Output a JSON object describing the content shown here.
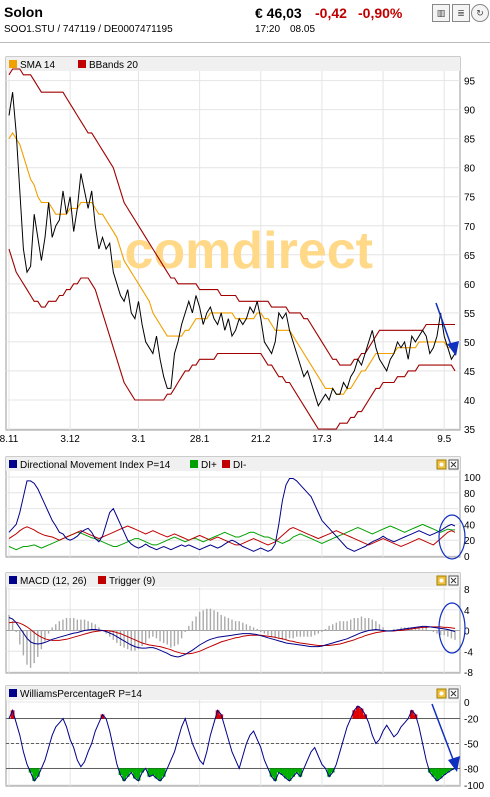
{
  "header": {
    "name": "Solon",
    "ids": "SOO1.STU  /  747119  /  DE0007471195",
    "price": "€ 46,03",
    "change": "-0,42",
    "change_pct": "-0,90%",
    "time": "17:20",
    "date": "08.05"
  },
  "watermark": ".comdirect",
  "chart_data": [
    {
      "type": "line",
      "title": "",
      "legend": [
        "SMA 14",
        "BBands 20"
      ],
      "colors": {
        "price": "#000000",
        "sma": "#f0a000",
        "bb": "#a00000"
      },
      "x_ticks": [
        "8.11",
        "3.12",
        "3.1",
        "28.1",
        "21.2",
        "17.3",
        "14.4",
        "9.5"
      ],
      "x_tick_index": [
        0,
        17,
        36,
        53,
        70,
        87,
        104,
        121
      ],
      "ylim": [
        35,
        97
      ],
      "y_ticks": [
        35,
        40,
        45,
        50,
        55,
        60,
        65,
        70,
        75,
        80,
        85,
        90,
        95
      ],
      "price": [
        89,
        93,
        86,
        76,
        66,
        62,
        63,
        72,
        68,
        64,
        68,
        74,
        68,
        70,
        71,
        76,
        72,
        75,
        69,
        73,
        79,
        76,
        73,
        76,
        70,
        66,
        68,
        66,
        67,
        62,
        60,
        58,
        57,
        59,
        55,
        54,
        57,
        53,
        50,
        49,
        48,
        51,
        47,
        44,
        42,
        42,
        48,
        50,
        53,
        55,
        57,
        55,
        58,
        56,
        53,
        55,
        56,
        54,
        53,
        55,
        52,
        54,
        51,
        52,
        54,
        53,
        54,
        56,
        55,
        57,
        54,
        50,
        49,
        48,
        50,
        55,
        54,
        55,
        52,
        50,
        48,
        46,
        44,
        45,
        43,
        41,
        39,
        40,
        41,
        40,
        42,
        41,
        41,
        43,
        42,
        44,
        45,
        47,
        46,
        48,
        50,
        52,
        49,
        47,
        46,
        45,
        47,
        48,
        50,
        49,
        50,
        47,
        51,
        50,
        51,
        52,
        51,
        48,
        49,
        51,
        55,
        51,
        49,
        47,
        48
      ],
      "sma": [
        85,
        86,
        85,
        84,
        82,
        80,
        78,
        77,
        75,
        74,
        74,
        74,
        73,
        72,
        72,
        72,
        72,
        73,
        73,
        73,
        74,
        74,
        74,
        74,
        73,
        72,
        72,
        71,
        70,
        69,
        68,
        66,
        64,
        63,
        62,
        61,
        60,
        59,
        58,
        57,
        55,
        54,
        53,
        52,
        51,
        51,
        51,
        51,
        51,
        52,
        52,
        53,
        54,
        54,
        54,
        54,
        55,
        55,
        55,
        55,
        55,
        55,
        55,
        54,
        54,
        54,
        54,
        54,
        54,
        55,
        55,
        54,
        54,
        53,
        52,
        52,
        52,
        52,
        52,
        51,
        50,
        49,
        48,
        47,
        46,
        45,
        44,
        43,
        42,
        42,
        42,
        41,
        41,
        41,
        42,
        42,
        43,
        44,
        45,
        45,
        46,
        47,
        48,
        48,
        48,
        48,
        48,
        48,
        49,
        49,
        49,
        49,
        49,
        49,
        50,
        50,
        50,
        50,
        50,
        50,
        50,
        50,
        49,
        49,
        48
      ],
      "bb_upper": [
        96,
        97,
        97,
        97,
        96,
        96,
        96,
        95,
        94,
        93,
        93,
        93,
        93,
        93,
        93,
        93,
        92,
        91,
        90,
        89,
        88,
        87,
        86,
        86,
        85,
        84,
        83,
        82,
        81,
        80,
        78,
        76,
        74,
        73,
        72,
        71,
        70,
        69,
        68,
        67,
        66,
        65,
        64,
        63,
        62,
        61,
        61,
        60,
        60,
        60,
        60,
        60,
        60,
        59,
        59,
        59,
        59,
        59,
        59,
        58,
        58,
        58,
        58,
        58,
        57,
        57,
        57,
        57,
        57,
        57,
        57,
        57,
        57,
        56,
        56,
        56,
        56,
        56,
        55,
        55,
        55,
        55,
        54,
        54,
        53,
        52,
        51,
        50,
        49,
        48,
        47,
        47,
        46,
        46,
        46,
        46,
        47,
        47,
        48,
        48,
        49,
        50,
        51,
        52,
        52,
        52,
        52,
        52,
        52,
        52,
        52,
        52,
        52,
        52,
        52,
        52,
        53,
        53,
        53,
        53,
        53,
        53,
        53,
        53,
        53
      ],
      "bb_lower": [
        66,
        64,
        62,
        61,
        60,
        59,
        58,
        57,
        57,
        56,
        56,
        57,
        57,
        57,
        58,
        58,
        59,
        59,
        60,
        60,
        61,
        61,
        61,
        60,
        59,
        57,
        55,
        53,
        51,
        49,
        47,
        45,
        43,
        42,
        41,
        40,
        40,
        40,
        40,
        40,
        40,
        40,
        40,
        40,
        41,
        41,
        42,
        43,
        44,
        45,
        45,
        46,
        46,
        47,
        47,
        47,
        47,
        47,
        48,
        48,
        48,
        48,
        48,
        48,
        48,
        48,
        48,
        48,
        48,
        48,
        48,
        47,
        46,
        46,
        45,
        44,
        44,
        43,
        43,
        42,
        41,
        40,
        39,
        38,
        37,
        36,
        35,
        35,
        35,
        35,
        35,
        35,
        36,
        36,
        36,
        37,
        37,
        38,
        38,
        39,
        40,
        41,
        42,
        42,
        43,
        43,
        43,
        43,
        44,
        44,
        44,
        45,
        45,
        45,
        46,
        46,
        46,
        46,
        46,
        46,
        46,
        46,
        46,
        46,
        45
      ]
    },
    {
      "type": "line",
      "title": "Directional Movement Index P=14",
      "legend": [
        "DI+",
        "DI-"
      ],
      "colors": {
        "dmi": "#00008b",
        "di_plus": "#00a000",
        "di_minus": "#c00000"
      },
      "ylim": [
        0,
        105
      ],
      "y_ticks": [
        0,
        20,
        40,
        60,
        80,
        100
      ],
      "dmi": [
        30,
        35,
        40,
        55,
        75,
        95,
        95,
        92,
        85,
        75,
        65,
        55,
        45,
        38,
        30,
        28,
        22,
        20,
        22,
        25,
        30,
        33,
        35,
        30,
        22,
        18,
        25,
        40,
        55,
        60,
        50,
        40,
        30,
        20,
        15,
        12,
        10,
        12,
        15,
        12,
        10,
        8,
        10,
        12,
        10,
        8,
        10,
        12,
        14,
        12,
        14,
        12,
        10,
        8,
        10,
        12,
        14,
        12,
        10,
        12,
        15,
        18,
        20,
        18,
        15,
        12,
        10,
        8,
        6,
        8,
        10,
        8,
        6,
        8,
        15,
        40,
        70,
        90,
        98,
        98,
        95,
        90,
        85,
        80,
        75,
        65,
        55,
        45,
        40,
        35,
        30,
        25,
        20,
        15,
        10,
        8,
        6,
        8,
        10,
        12,
        15,
        18,
        20,
        22,
        25,
        22,
        20,
        18,
        20,
        22,
        24,
        26,
        28,
        30,
        32,
        30,
        28,
        26,
        28,
        30,
        32,
        35,
        38,
        40,
        38
      ],
      "di_plus": [
        12,
        10,
        8,
        10,
        12,
        12,
        13,
        14,
        12,
        10,
        12,
        14,
        16,
        18,
        20,
        22,
        24,
        26,
        28,
        30,
        29,
        27,
        25,
        23,
        22,
        20,
        18,
        16,
        14,
        12,
        12,
        14,
        16,
        18,
        20,
        22,
        22,
        20,
        18,
        16,
        14,
        14,
        16,
        18,
        20,
        22,
        24,
        22,
        20,
        18,
        20,
        22,
        22,
        20,
        18,
        20,
        22,
        24,
        26,
        28,
        30,
        28,
        26,
        24,
        24,
        26,
        28,
        30,
        30,
        28,
        26,
        24,
        24,
        22,
        20,
        18,
        16,
        18,
        20,
        24,
        26,
        28,
        26,
        24,
        22,
        20,
        18,
        16,
        18,
        20,
        22,
        24,
        26,
        28,
        30,
        32,
        34,
        36,
        34,
        32,
        30,
        28,
        30,
        32,
        34,
        36,
        38,
        36,
        34,
        32,
        30,
        32,
        34,
        36,
        38,
        40,
        38,
        36,
        34,
        32,
        30,
        32,
        34,
        33,
        33
      ],
      "di_minus": [
        22,
        25,
        28,
        32,
        35,
        37,
        35,
        33,
        30,
        28,
        26,
        25,
        24,
        22,
        20,
        22,
        24,
        26,
        28,
        30,
        32,
        30,
        28,
        26,
        24,
        22,
        24,
        26,
        28,
        30,
        32,
        34,
        36,
        38,
        36,
        34,
        32,
        30,
        28,
        30,
        32,
        30,
        28,
        26,
        24,
        26,
        28,
        26,
        24,
        22,
        20,
        22,
        24,
        26,
        24,
        22,
        20,
        22,
        24,
        22,
        20,
        18,
        16,
        14,
        14,
        16,
        18,
        20,
        22,
        20,
        18,
        16,
        14,
        16,
        18,
        22,
        26,
        30,
        34,
        36,
        34,
        32,
        30,
        28,
        26,
        24,
        22,
        24,
        26,
        28,
        30,
        32,
        30,
        28,
        26,
        24,
        22,
        20,
        18,
        16,
        14,
        16,
        18,
        20,
        22,
        20,
        18,
        16,
        14,
        12,
        14,
        16,
        18,
        20,
        22,
        20,
        18,
        16,
        14,
        18,
        22,
        26,
        30,
        32,
        30
      ]
    },
    {
      "type": "line",
      "title": "MACD (12, 26)",
      "legend": [
        "Trigger (9)"
      ],
      "colors": {
        "macd": "#00008b",
        "trigger": "#c00000",
        "hist": "#aaaaaa"
      },
      "ylim": [
        -8,
        8
      ],
      "y_ticks": [
        -8,
        -4,
        0,
        4,
        8
      ],
      "macd": [
        2.5,
        2.2,
        1.5,
        0.5,
        -0.5,
        -1.5,
        -2.2,
        -2.5,
        -2.6,
        -2.5,
        -2.3,
        -2.0,
        -1.7,
        -1.5,
        -1.3,
        -1.1,
        -0.9,
        -0.7,
        -0.5,
        -0.4,
        -0.2,
        0.0,
        0.1,
        0.2,
        0.2,
        0.1,
        0.0,
        -0.2,
        -0.5,
        -0.8,
        -1.2,
        -1.6,
        -2.0,
        -2.4,
        -2.8,
        -3.1,
        -3.3,
        -3.4,
        -3.4,
        -3.3,
        -3.3,
        -3.5,
        -3.8,
        -4.1,
        -4.4,
        -4.8,
        -5.0,
        -5.1,
        -4.9,
        -4.6,
        -4.2,
        -3.8,
        -3.3,
        -2.8,
        -2.4,
        -2.0,
        -1.7,
        -1.5,
        -1.3,
        -1.2,
        -1.1,
        -1.0,
        -0.9,
        -0.8,
        -0.7,
        -0.6,
        -0.6,
        -0.6,
        -0.7,
        -0.8,
        -1.0,
        -1.2,
        -1.4,
        -1.6,
        -1.8,
        -2.0,
        -2.2,
        -2.4,
        -2.5,
        -2.6,
        -2.7,
        -2.8,
        -2.9,
        -3.0,
        -3.1,
        -3.1,
        -3.1,
        -3.0,
        -2.8,
        -2.6,
        -2.4,
        -2.2,
        -2.0,
        -1.8,
        -1.6,
        -1.3,
        -1.0,
        -0.7,
        -0.4,
        -0.2,
        0.0,
        0.1,
        0.2,
        0.1,
        0.0,
        -0.1,
        -0.1,
        0.0,
        0.1,
        0.2,
        0.3,
        0.4,
        0.5,
        0.6,
        0.7,
        0.8,
        0.8,
        0.7,
        0.6,
        0.5,
        0.4,
        0.3,
        0.2,
        0.0,
        -0.2
      ],
      "trigger": [
        1.5,
        1.6,
        1.6,
        1.4,
        1.1,
        0.7,
        0.2,
        -0.4,
        -0.9,
        -1.3,
        -1.6,
        -1.8,
        -1.9,
        -1.9,
        -1.9,
        -1.8,
        -1.7,
        -1.5,
        -1.3,
        -1.1,
        -0.9,
        -0.7,
        -0.5,
        -0.3,
        -0.2,
        -0.1,
        0.0,
        0.0,
        -0.1,
        -0.2,
        -0.4,
        -0.6,
        -0.9,
        -1.2,
        -1.5,
        -1.8,
        -2.1,
        -2.4,
        -2.6,
        -2.8,
        -2.9,
        -3.0,
        -3.1,
        -3.3,
        -3.5,
        -3.7,
        -4.0,
        -4.2,
        -4.4,
        -4.5,
        -4.5,
        -4.4,
        -4.2,
        -4.0,
        -3.7,
        -3.4,
        -3.1,
        -2.8,
        -2.5,
        -2.2,
        -2.0,
        -1.8,
        -1.6,
        -1.4,
        -1.3,
        -1.1,
        -1.0,
        -0.9,
        -0.9,
        -0.9,
        -0.9,
        -1.0,
        -1.1,
        -1.2,
        -1.3,
        -1.5,
        -1.6,
        -1.8,
        -2.0,
        -2.1,
        -2.3,
        -2.4,
        -2.5,
        -2.6,
        -2.7,
        -2.8,
        -2.9,
        -2.9,
        -2.9,
        -2.9,
        -2.8,
        -2.7,
        -2.6,
        -2.4,
        -2.2,
        -2.0,
        -1.8,
        -1.5,
        -1.3,
        -1.0,
        -0.8,
        -0.6,
        -0.4,
        -0.3,
        -0.2,
        -0.1,
        -0.1,
        -0.1,
        0.0,
        0.0,
        0.1,
        0.2,
        0.3,
        0.4,
        0.5,
        0.6,
        0.6,
        0.7,
        0.7,
        0.7,
        0.7,
        0.6,
        0.6,
        0.5,
        0.4
      ]
    },
    {
      "type": "line",
      "title": "WilliamsPercentageR P=14",
      "colors": {
        "line": "#00008b",
        "overbought": "#e00000",
        "oversold": "#00b000"
      },
      "ylim": [
        -100,
        0
      ],
      "y_ticks": [
        0,
        -20,
        -50,
        -80,
        -100
      ],
      "values": [
        -20,
        -10,
        -25,
        -40,
        -60,
        -75,
        -85,
        -95,
        -90,
        -80,
        -70,
        -55,
        -40,
        -30,
        -25,
        -20,
        -30,
        -45,
        -55,
        -70,
        -78,
        -72,
        -60,
        -50,
        -35,
        -25,
        -15,
        -20,
        -35,
        -55,
        -75,
        -88,
        -95,
        -90,
        -85,
        -92,
        -95,
        -85,
        -80,
        -90,
        -88,
        -92,
        -95,
        -90,
        -80,
        -70,
        -60,
        -45,
        -30,
        -20,
        -35,
        -50,
        -60,
        -70,
        -75,
        -60,
        -40,
        -25,
        -10,
        -15,
        -30,
        -45,
        -60,
        -70,
        -80,
        -65,
        -50,
        -40,
        -35,
        -45,
        -55,
        -70,
        -80,
        -90,
        -95,
        -85,
        -88,
        -92,
        -95,
        -90,
        -85,
        -90,
        -80,
        -70,
        -60,
        -55,
        -65,
        -75,
        -80,
        -90,
        -85,
        -75,
        -60,
        -45,
        -30,
        -20,
        -10,
        -5,
        -8,
        -15,
        -25,
        -40,
        -50,
        -45,
        -35,
        -28,
        -35,
        -42,
        -38,
        -30,
        -25,
        -20,
        -10,
        -15,
        -30,
        -50,
        -70,
        -85,
        -90,
        -95,
        -92,
        -88,
        -85,
        -82,
        -80
      ]
    }
  ]
}
